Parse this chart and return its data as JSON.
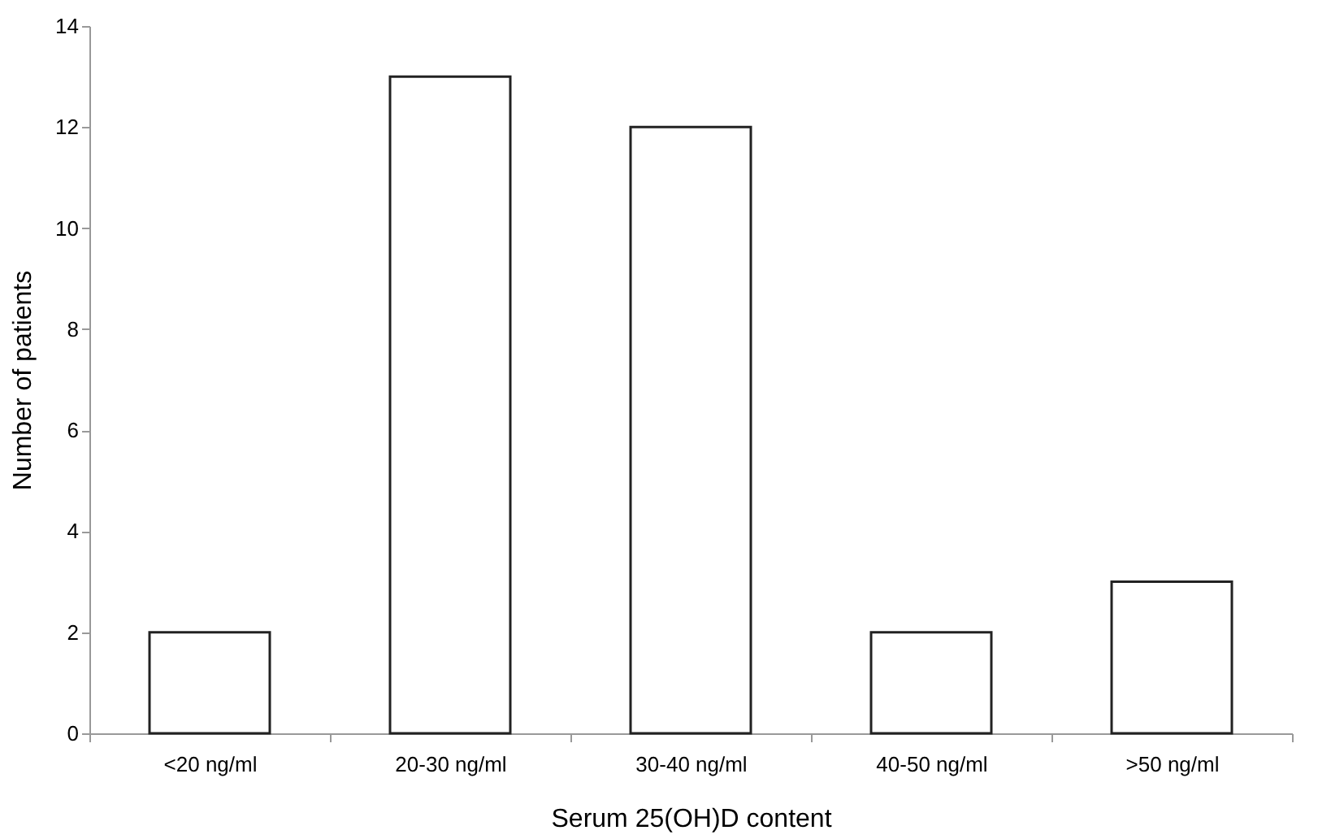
{
  "chart_data": {
    "type": "bar",
    "xlabel": "Serum 25(OH)D content",
    "ylabel": "Number of patients",
    "categories": [
      "<20 ng/ml",
      "20-30 ng/ml",
      "30-40 ng/ml",
      "40-50 ng/ml",
      ">50 ng/ml"
    ],
    "values": [
      2,
      13,
      12,
      2,
      3
    ],
    "color": "#ffffff",
    "ylim": [
      0,
      14
    ],
    "yticks": [
      0,
      2,
      4,
      6,
      8,
      10,
      12,
      14
    ],
    "grid": false
  }
}
